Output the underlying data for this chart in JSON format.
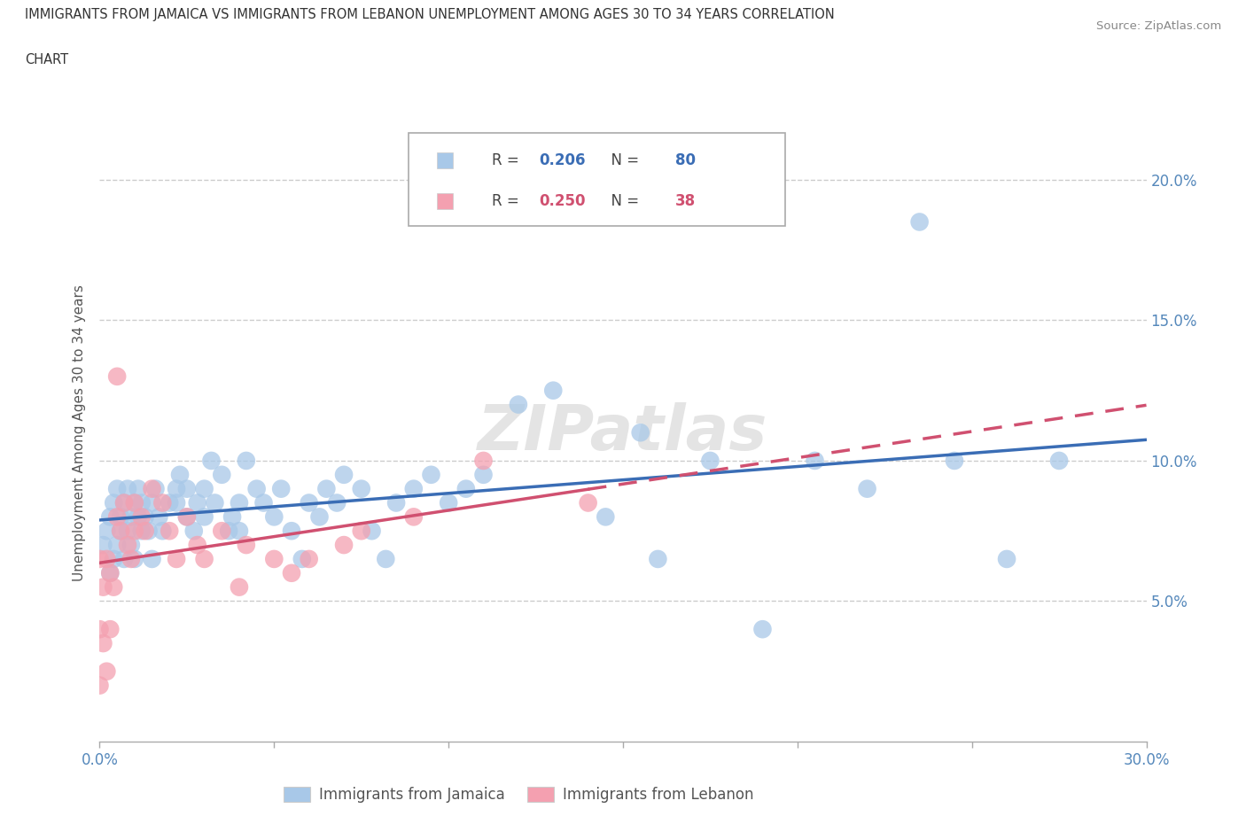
{
  "title_line1": "IMMIGRANTS FROM JAMAICA VS IMMIGRANTS FROM LEBANON UNEMPLOYMENT AMONG AGES 30 TO 34 YEARS CORRELATION",
  "title_line2": "CHART",
  "source_text": "Source: ZipAtlas.com",
  "ylabel": "Unemployment Among Ages 30 to 34 years",
  "xlim": [
    0.0,
    0.3
  ],
  "ylim": [
    0.0,
    0.22
  ],
  "ytick_positions": [
    0.05,
    0.1,
    0.15,
    0.2
  ],
  "ytick_labels": [
    "5.0%",
    "10.0%",
    "15.0%",
    "20.0%"
  ],
  "legend_jamaica_R": "0.206",
  "legend_jamaica_N": "80",
  "legend_lebanon_R": "0.250",
  "legend_lebanon_N": "38",
  "jamaica_color": "#a8c8e8",
  "lebanon_color": "#f4a0b0",
  "jamaica_line_color": "#3a6db5",
  "lebanon_line_color": "#d05070",
  "watermark": "ZIPatlas",
  "jamaica_scatter_x": [
    0.001,
    0.002,
    0.003,
    0.003,
    0.004,
    0.004,
    0.005,
    0.005,
    0.006,
    0.006,
    0.007,
    0.007,
    0.008,
    0.008,
    0.009,
    0.009,
    0.01,
    0.01,
    0.011,
    0.011,
    0.012,
    0.012,
    0.013,
    0.014,
    0.015,
    0.015,
    0.016,
    0.017,
    0.018,
    0.02,
    0.022,
    0.022,
    0.023,
    0.025,
    0.025,
    0.027,
    0.028,
    0.03,
    0.03,
    0.032,
    0.033,
    0.035,
    0.037,
    0.038,
    0.04,
    0.04,
    0.042,
    0.045,
    0.047,
    0.05,
    0.052,
    0.055,
    0.058,
    0.06,
    0.063,
    0.065,
    0.068,
    0.07,
    0.075,
    0.078,
    0.082,
    0.085,
    0.09,
    0.095,
    0.1,
    0.105,
    0.11,
    0.12,
    0.13,
    0.145,
    0.155,
    0.16,
    0.175,
    0.19,
    0.205,
    0.22,
    0.235,
    0.245,
    0.26,
    0.275
  ],
  "jamaica_scatter_y": [
    0.07,
    0.075,
    0.06,
    0.08,
    0.065,
    0.085,
    0.07,
    0.09,
    0.075,
    0.08,
    0.065,
    0.085,
    0.075,
    0.09,
    0.07,
    0.08,
    0.065,
    0.085,
    0.08,
    0.09,
    0.075,
    0.085,
    0.08,
    0.075,
    0.065,
    0.085,
    0.09,
    0.08,
    0.075,
    0.085,
    0.085,
    0.09,
    0.095,
    0.08,
    0.09,
    0.075,
    0.085,
    0.08,
    0.09,
    0.1,
    0.085,
    0.095,
    0.075,
    0.08,
    0.075,
    0.085,
    0.1,
    0.09,
    0.085,
    0.08,
    0.09,
    0.075,
    0.065,
    0.085,
    0.08,
    0.09,
    0.085,
    0.095,
    0.09,
    0.075,
    0.065,
    0.085,
    0.09,
    0.095,
    0.085,
    0.09,
    0.095,
    0.12,
    0.125,
    0.08,
    0.11,
    0.065,
    0.1,
    0.04,
    0.1,
    0.09,
    0.185,
    0.1,
    0.065,
    0.1
  ],
  "lebanon_scatter_x": [
    0.0,
    0.0,
    0.0,
    0.001,
    0.001,
    0.002,
    0.002,
    0.003,
    0.003,
    0.004,
    0.005,
    0.005,
    0.006,
    0.007,
    0.008,
    0.009,
    0.01,
    0.01,
    0.012,
    0.013,
    0.015,
    0.018,
    0.02,
    0.022,
    0.025,
    0.028,
    0.03,
    0.035,
    0.04,
    0.042,
    0.05,
    0.055,
    0.06,
    0.07,
    0.075,
    0.09,
    0.11,
    0.14
  ],
  "lebanon_scatter_y": [
    0.065,
    0.04,
    0.02,
    0.055,
    0.035,
    0.065,
    0.025,
    0.06,
    0.04,
    0.055,
    0.13,
    0.08,
    0.075,
    0.085,
    0.07,
    0.065,
    0.075,
    0.085,
    0.08,
    0.075,
    0.09,
    0.085,
    0.075,
    0.065,
    0.08,
    0.07,
    0.065,
    0.075,
    0.055,
    0.07,
    0.065,
    0.06,
    0.065,
    0.07,
    0.075,
    0.08,
    0.1,
    0.085
  ]
}
